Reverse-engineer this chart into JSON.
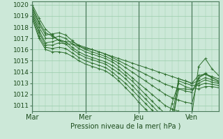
{
  "background_color": "#cce8d8",
  "grid_color": "#99ccaa",
  "line_color": "#2d6e2d",
  "xlabel": "Pression niveau de la mer( hPa )",
  "xtick_labels": [
    "Mar",
    "Mer",
    "Jeu",
    "Ven"
  ],
  "xtick_positions": [
    0,
    48,
    96,
    144
  ],
  "ylim_min": 1010.5,
  "ylim_max": 1020.3,
  "yticks": [
    1011,
    1012,
    1013,
    1014,
    1015,
    1016,
    1017,
    1018,
    1019,
    1020
  ],
  "xlim_min": 0,
  "xlim_max": 168,
  "lines": [
    {
      "x": [
        0,
        6,
        12,
        18,
        24,
        30,
        36,
        42,
        48,
        54,
        60,
        66,
        72,
        78,
        84,
        90,
        96,
        102,
        108,
        114,
        120,
        126,
        132,
        138,
        144,
        150,
        156,
        162,
        168
      ],
      "y": [
        1020.0,
        1018.8,
        1017.8,
        1017.3,
        1016.8,
        1016.5,
        1016.5,
        1016.3,
        1016.1,
        1016.0,
        1015.8,
        1015.6,
        1015.4,
        1015.2,
        1015.0,
        1014.8,
        1014.6,
        1014.4,
        1014.2,
        1014.0,
        1013.8,
        1013.6,
        1013.4,
        1013.2,
        1013.0,
        1013.7,
        1013.8,
        1013.6,
        1013.4
      ]
    },
    {
      "x": [
        0,
        6,
        12,
        18,
        24,
        30,
        36,
        42,
        48,
        54,
        60,
        66,
        72,
        78,
        84,
        90,
        96,
        102,
        108,
        114,
        120,
        126,
        132,
        138,
        144,
        150,
        156,
        162,
        168
      ],
      "y": [
        1019.8,
        1018.5,
        1017.5,
        1017.2,
        1016.8,
        1016.7,
        1016.7,
        1016.4,
        1016.2,
        1016.0,
        1015.8,
        1015.6,
        1015.3,
        1015.0,
        1014.7,
        1014.4,
        1014.1,
        1013.8,
        1013.5,
        1013.2,
        1012.9,
        1012.7,
        1012.5,
        1012.3,
        1012.2,
        1013.5,
        1013.9,
        1013.5,
        1013.2
      ]
    },
    {
      "x": [
        0,
        6,
        12,
        18,
        24,
        30,
        36,
        42,
        48,
        54,
        60,
        66,
        72,
        78,
        84,
        90,
        96,
        102,
        108,
        114,
        120,
        126,
        132,
        138,
        144,
        150,
        156,
        162,
        168
      ],
      "y": [
        1019.7,
        1018.3,
        1017.3,
        1017.4,
        1017.5,
        1017.3,
        1016.8,
        1016.3,
        1016.0,
        1015.8,
        1015.6,
        1015.4,
        1015.1,
        1014.8,
        1014.4,
        1014.0,
        1013.6,
        1013.2,
        1012.8,
        1012.4,
        1012.0,
        1011.7,
        1011.5,
        1011.3,
        1011.2,
        1013.5,
        1013.8,
        1013.5,
        1013.2
      ]
    },
    {
      "x": [
        0,
        6,
        12,
        18,
        24,
        30,
        36,
        42,
        48,
        54,
        60,
        66,
        72,
        78,
        84,
        90,
        96,
        102,
        108,
        114,
        120,
        126,
        132,
        138,
        144,
        150,
        156,
        162,
        168
      ],
      "y": [
        1019.5,
        1018.0,
        1017.0,
        1017.0,
        1017.2,
        1017.0,
        1016.5,
        1016.1,
        1015.8,
        1015.6,
        1015.4,
        1015.2,
        1014.9,
        1014.5,
        1014.0,
        1013.5,
        1013.0,
        1012.5,
        1012.0,
        1011.5,
        1011.0,
        1010.7,
        1010.5,
        1010.3,
        1010.2,
        1014.5,
        1015.2,
        1014.3,
        1013.7
      ]
    },
    {
      "x": [
        0,
        6,
        12,
        18,
        24,
        30,
        36,
        42,
        48,
        54,
        60,
        66,
        72,
        78,
        84,
        90,
        96,
        102,
        108,
        114,
        120,
        126,
        132,
        138,
        144,
        150,
        156,
        162,
        168
      ],
      "y": [
        1019.3,
        1017.7,
        1016.6,
        1016.7,
        1016.9,
        1016.7,
        1016.2,
        1015.8,
        1015.5,
        1015.3,
        1015.1,
        1014.9,
        1014.6,
        1014.2,
        1013.7,
        1013.2,
        1012.6,
        1012.0,
        1011.4,
        1010.8,
        1010.3,
        1010.0,
        1013.4,
        1013.2,
        1013.0,
        1013.2,
        1013.5,
        1013.3,
        1013.1
      ]
    },
    {
      "x": [
        0,
        6,
        12,
        18,
        24,
        30,
        36,
        42,
        48,
        54,
        60,
        66,
        72,
        78,
        84,
        90,
        96,
        102,
        108,
        114,
        120,
        126,
        132,
        138,
        144,
        150,
        156,
        162,
        168
      ],
      "y": [
        1019.1,
        1017.5,
        1016.4,
        1016.4,
        1016.6,
        1016.5,
        1016.0,
        1015.6,
        1015.3,
        1015.1,
        1014.9,
        1014.7,
        1014.3,
        1013.9,
        1013.4,
        1012.8,
        1012.2,
        1011.6,
        1011.0,
        1010.4,
        1009.9,
        1009.5,
        1012.5,
        1012.5,
        1012.4,
        1013.0,
        1013.3,
        1013.1,
        1013.0
      ]
    },
    {
      "x": [
        0,
        6,
        12,
        18,
        24,
        30,
        36,
        42,
        48,
        54,
        60,
        66,
        72,
        78,
        84,
        90,
        96,
        102,
        108,
        114,
        120,
        126,
        132,
        138,
        144,
        150,
        156,
        162,
        168
      ],
      "y": [
        1018.9,
        1017.2,
        1016.2,
        1016.1,
        1016.2,
        1016.1,
        1015.7,
        1015.3,
        1015.0,
        1014.8,
        1014.6,
        1014.4,
        1014.0,
        1013.5,
        1013.0,
        1012.4,
        1011.8,
        1011.2,
        1010.6,
        1010.0,
        1009.4,
        1009.0,
        1013.2,
        1013.0,
        1012.8,
        1012.8,
        1013.0,
        1012.9,
        1012.8
      ]
    },
    {
      "x": [
        0,
        6,
        12,
        18,
        24,
        30,
        36,
        42,
        48,
        54,
        60,
        66,
        72,
        78,
        84,
        90,
        96,
        102,
        108,
        114,
        120,
        126,
        132,
        138,
        144,
        150,
        156,
        162,
        168
      ],
      "y": [
        1018.7,
        1017.0,
        1016.0,
        1015.8,
        1015.8,
        1015.7,
        1015.4,
        1015.0,
        1014.7,
        1014.5,
        1014.3,
        1014.1,
        1013.7,
        1013.2,
        1012.6,
        1012.0,
        1011.3,
        1010.7,
        1010.1,
        1009.5,
        1008.9,
        1011.2,
        1013.0,
        1012.7,
        1012.5,
        1012.5,
        1012.7,
        1012.7,
        1012.6
      ]
    }
  ],
  "vline_positions": [
    0,
    48,
    96,
    144
  ],
  "vline_color": "#4a7a5a",
  "spine_color": "#4a7a5a",
  "tick_label_color": "#1a4a1a",
  "xlabel_fontsize": 7,
  "xtick_fontsize": 7,
  "ytick_fontsize": 6.5,
  "linewidth": 0.7,
  "markersize": 2.5
}
